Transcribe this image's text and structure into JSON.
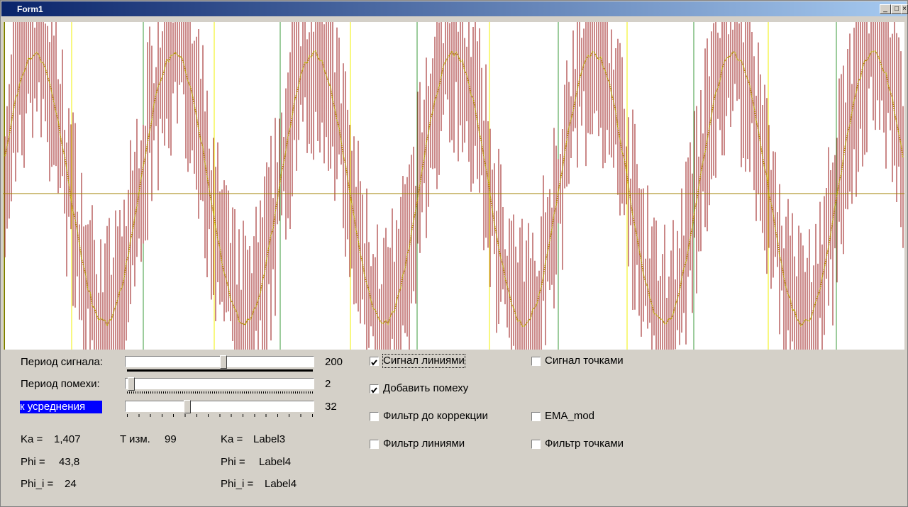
{
  "window": {
    "title": "Form1"
  },
  "sliders": [
    {
      "label": "Период сигнала:",
      "value": 200
    },
    {
      "label": "Период помехи:",
      "value": 2
    },
    {
      "label": "к усреднения",
      "value": 32
    }
  ],
  "readouts": [
    {
      "label": "Ka =",
      "value": "1,407"
    },
    {
      "label": "T изм.",
      "value": 99
    },
    {
      "label": "Ka =",
      "value": "Label3"
    },
    {
      "label": "Phi =",
      "value": "43,8"
    },
    {
      "label": "Phi =",
      "value": "Label4"
    },
    {
      "label": "Phi_i =",
      "value": 24
    },
    {
      "label": "Phi_i =",
      "value": "Label4"
    }
  ],
  "checkboxes": [
    {
      "label": "Сигнал линиями",
      "checked": true
    },
    {
      "label": "Сигнал точками",
      "checked": false
    },
    {
      "label": "Добавить помеху",
      "checked": true
    },
    {
      "label": "Фильтр до коррекции",
      "checked": false
    },
    {
      "label": "EMA_mod",
      "checked": false
    },
    {
      "label": "Фильтр линиями",
      "checked": false
    },
    {
      "label": "Фильтр точками",
      "checked": false
    }
  ]
}
